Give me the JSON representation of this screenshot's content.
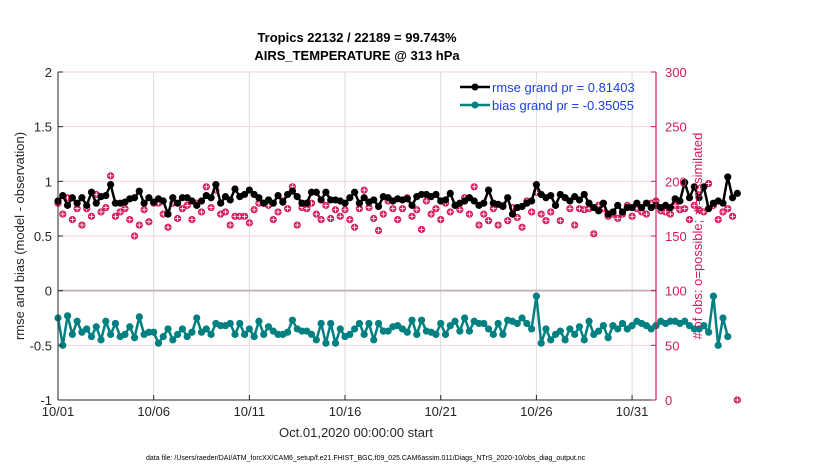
{
  "chart_data": {
    "type": "line",
    "title": "Tropics 22132 / 22189 = 99.743%",
    "subtitle": "AIRS_TEMPERATURE @ 313 hPa",
    "xlabel": "Oct.01,2020 00:00:00 start",
    "ylabel": "rmse and bias (model - observation)",
    "y2label": "# of obs: o=possible; ∗=assimilated",
    "xlim_days": [
      0,
      31
    ],
    "ylim": [
      -1,
      2
    ],
    "y2lim": [
      0,
      300
    ],
    "x_ticks": [
      "10/01",
      "10/06",
      "10/11",
      "10/16",
      "10/21",
      "10/26",
      "10/31"
    ],
    "x_tick_days": [
      0,
      5,
      10,
      15,
      20,
      25,
      30
    ],
    "y_ticks": [
      "-1",
      "-0.5",
      "0",
      "0.5",
      "1",
      "1.5",
      "2"
    ],
    "y2_ticks": [
      "0",
      "50",
      "100",
      "150",
      "200",
      "250",
      "300"
    ],
    "grid": true,
    "legend_position": "top-right",
    "footnote": "data file: /Users/raeder/DAI/ATM_forcXX/CAM6_setup/f.e21.FHIST_BGC.f09_025.CAM6assim.011/Diags_NTrS_2020-10/obs_diag_output.nc",
    "series": [
      {
        "name": "rmse grand pr = 0.81403",
        "color": "#000000",
        "axis": "left",
        "x_step_days": 0.25,
        "values": [
          0.82,
          0.87,
          0.78,
          0.85,
          0.8,
          0.85,
          0.78,
          0.9,
          0.8,
          0.86,
          0.87,
          0.97,
          0.8,
          0.8,
          0.81,
          0.84,
          0.85,
          0.91,
          0.8,
          0.85,
          0.81,
          0.84,
          0.82,
          0.7,
          0.85,
          0.8,
          0.85,
          0.85,
          0.82,
          0.78,
          0.82,
          0.87,
          0.85,
          0.97,
          0.8,
          0.86,
          0.83,
          0.93,
          0.86,
          0.88,
          0.92,
          0.88,
          0.85,
          0.8,
          0.83,
          0.8,
          0.87,
          0.81,
          0.88,
          0.91,
          0.86,
          0.8,
          0.8,
          0.9,
          0.9,
          0.83,
          0.9,
          0.83,
          0.83,
          0.82,
          0.8,
          0.85,
          0.9,
          0.8,
          0.85,
          0.81,
          0.83,
          0.77,
          0.86,
          0.85,
          0.82,
          0.84,
          0.83,
          0.84,
          0.78,
          0.86,
          0.88,
          0.88,
          0.86,
          0.88,
          0.82,
          0.83,
          0.89,
          0.78,
          0.8,
          0.82,
          0.85,
          0.82,
          0.78,
          0.8,
          0.92,
          0.8,
          0.79,
          0.77,
          0.85,
          0.7,
          0.76,
          0.77,
          0.8,
          0.82,
          0.97,
          0.88,
          0.85,
          0.87,
          0.78,
          0.88,
          0.85,
          0.82,
          0.86,
          0.83,
          0.88,
          0.8,
          0.76,
          0.73,
          0.8,
          0.7,
          0.72,
          0.78,
          0.72,
          0.76,
          0.76,
          0.8,
          0.76,
          0.8,
          0.76,
          0.78,
          0.76,
          0.78,
          0.76,
          0.84,
          0.82,
          0.99,
          0.85,
          0.95,
          0.85,
          0.95,
          0.75,
          0.8,
          0.82,
          0.8,
          1.04,
          0.85,
          0.89
        ]
      },
      {
        "name": "bias grand pr = -0.35055",
        "color": "#008080",
        "axis": "left",
        "x_step_days": 0.25,
        "values": [
          -0.25,
          -0.5,
          -0.23,
          -0.4,
          -0.28,
          -0.38,
          -0.35,
          -0.42,
          -0.33,
          -0.45,
          -0.28,
          -0.4,
          -0.3,
          -0.42,
          -0.4,
          -0.33,
          -0.43,
          -0.24,
          -0.4,
          -0.38,
          -0.38,
          -0.48,
          -0.42,
          -0.35,
          -0.45,
          -0.4,
          -0.35,
          -0.42,
          -0.38,
          -0.25,
          -0.38,
          -0.35,
          -0.4,
          -0.3,
          -0.32,
          -0.32,
          -0.3,
          -0.4,
          -0.3,
          -0.4,
          -0.35,
          -0.42,
          -0.28,
          -0.4,
          -0.33,
          -0.37,
          -0.4,
          -0.4,
          -0.38,
          -0.27,
          -0.35,
          -0.37,
          -0.37,
          -0.4,
          -0.45,
          -0.3,
          -0.48,
          -0.3,
          -0.48,
          -0.35,
          -0.42,
          -0.4,
          -0.35,
          -0.3,
          -0.4,
          -0.3,
          -0.45,
          -0.3,
          -0.37,
          -0.37,
          -0.33,
          -0.32,
          -0.35,
          -0.38,
          -0.27,
          -0.4,
          -0.27,
          -0.37,
          -0.38,
          -0.4,
          -0.3,
          -0.4,
          -0.32,
          -0.28,
          -0.37,
          -0.25,
          -0.37,
          -0.28,
          -0.3,
          -0.3,
          -0.35,
          -0.4,
          -0.3,
          -0.4,
          -0.27,
          -0.28,
          -0.3,
          -0.25,
          -0.3,
          -0.35,
          -0.05,
          -0.48,
          -0.35,
          -0.45,
          -0.4,
          -0.37,
          -0.45,
          -0.35,
          -0.4,
          -0.33,
          -0.45,
          -0.28,
          -0.4,
          -0.37,
          -0.32,
          -0.43,
          -0.32,
          -0.35,
          -0.3,
          -0.35,
          -0.32,
          -0.28,
          -0.3,
          -0.32,
          -0.35,
          -0.32,
          -0.28,
          -0.3,
          -0.28,
          -0.28,
          -0.3,
          -0.28,
          -0.32,
          -0.35,
          -0.35,
          -0.32,
          -0.38,
          -0.05,
          -0.5,
          -0.25,
          -0.42
        ]
      },
      {
        "name": "# of obs (possible / assimilated)",
        "color": "#d6185f",
        "axis": "right",
        "x_step_days": 0.25,
        "values": [
          180,
          170,
          185,
          165,
          175,
          160,
          175,
          168,
          188,
          172,
          176,
          205,
          168,
          172,
          175,
          165,
          150,
          160,
          174,
          163,
          180,
          180,
          170,
          158,
          180,
          166,
          175,
          178,
          165,
          180,
          172,
          195,
          176,
          192,
          170,
          172,
          160,
          168,
          168,
          168,
          162,
          174,
          180,
          180,
          178,
          165,
          172,
          182,
          175,
          195,
          160,
          176,
          175,
          180,
          170,
          165,
          178,
          166,
          174,
          168,
          174,
          165,
          158,
          175,
          192,
          176,
          166,
          155,
          170,
          182,
          175,
          165,
          175,
          185,
          168,
          174,
          156,
          182,
          170,
          175,
          165,
          180,
          172,
          178,
          174,
          185,
          170,
          195,
          160,
          170,
          164,
          175,
          160,
          178,
          164,
          176,
          167,
          158,
          182,
          172,
          190,
          170,
          164,
          172,
          178,
          164,
          185,
          175,
          160,
          175,
          174,
          175,
          152,
          178,
          175,
          168,
          170,
          166,
          170,
          178,
          168,
          175,
          172,
          170,
          180,
          182,
          173,
          172,
          170,
          178,
          174,
          175,
          165,
          178,
          174,
          172,
          198,
          178,
          165,
          172,
          175,
          168,
          0
        ]
      }
    ]
  }
}
